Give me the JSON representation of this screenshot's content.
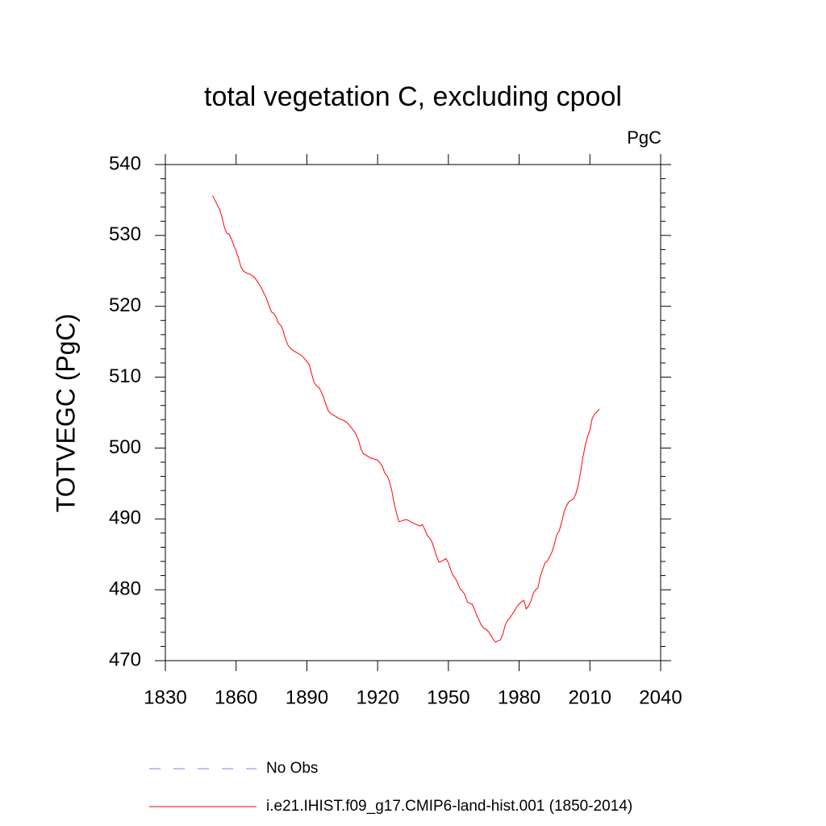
{
  "chart_data": {
    "type": "line",
    "title": "total vegetation C, excluding cpool",
    "units_label": "PgC",
    "y_label": "TOTVEGC  (PgC)",
    "xlim": [
      1830,
      2040
    ],
    "xticks": [
      1830,
      1860,
      1890,
      1920,
      1950,
      1980,
      2010,
      2040
    ],
    "ylim": [
      470,
      540
    ],
    "yticks": [
      470,
      480,
      490,
      500,
      510,
      520,
      530,
      540
    ],
    "yminorticks": [
      472,
      474,
      476,
      478,
      482,
      484,
      486,
      488,
      492,
      494,
      496,
      498,
      502,
      504,
      506,
      508,
      512,
      514,
      516,
      518,
      522,
      524,
      526,
      528,
      532,
      534,
      536,
      538
    ],
    "x": [
      1850,
      1851,
      1852,
      1853,
      1854,
      1855,
      1856,
      1857,
      1858,
      1859,
      1860,
      1861,
      1862,
      1863,
      1864,
      1865,
      1866,
      1867,
      1868,
      1869,
      1870,
      1871,
      1872,
      1873,
      1874,
      1875,
      1876,
      1877,
      1878,
      1879,
      1880,
      1881,
      1882,
      1883,
      1884,
      1885,
      1886,
      1887,
      1888,
      1889,
      1890,
      1891,
      1892,
      1893,
      1894,
      1895,
      1896,
      1897,
      1898,
      1899,
      1900,
      1901,
      1902,
      1903,
      1904,
      1905,
      1906,
      1907,
      1908,
      1909,
      1910,
      1911,
      1912,
      1913,
      1914,
      1915,
      1916,
      1917,
      1918,
      1919,
      1920,
      1921,
      1922,
      1923,
      1924,
      1925,
      1926,
      1927,
      1928,
      1929,
      1930,
      1931,
      1932,
      1933,
      1934,
      1935,
      1936,
      1937,
      1938,
      1939,
      1940,
      1941,
      1942,
      1943,
      1944,
      1945,
      1946,
      1947,
      1948,
      1949,
      1950,
      1951,
      1952,
      1953,
      1954,
      1955,
      1956,
      1957,
      1958,
      1959,
      1960,
      1961,
      1962,
      1963,
      1964,
      1965,
      1966,
      1967,
      1968,
      1969,
      1970,
      1971,
      1972,
      1973,
      1974,
      1975,
      1976,
      1977,
      1978,
      1979,
      1980,
      1981,
      1982,
      1983,
      1984,
      1985,
      1986,
      1987,
      1988,
      1989,
      1990,
      1991,
      1992,
      1993,
      1994,
      1995,
      1996,
      1997,
      1998,
      1999,
      2000,
      2001,
      2002,
      2003,
      2004,
      2005,
      2006,
      2007,
      2008,
      2009,
      2010,
      2011,
      2012,
      2013,
      2014
    ],
    "series": [
      {
        "name": "No Obs",
        "color": "#8080d0",
        "dash": "dashed"
      },
      {
        "name": "i.e21.IHIST.f09_g17.CMIP6-land-hist.001 (1850-2014)",
        "color": "#ff0000",
        "dash": "solid",
        "values": [
          535.6,
          535.0,
          534.3,
          533.7,
          532.6,
          531.2,
          530.3,
          530.2,
          529.5,
          528.6,
          527.8,
          526.8,
          525.6,
          525.0,
          524.8,
          524.6,
          524.5,
          524.3,
          524.0,
          523.5,
          523.0,
          522.4,
          521.7,
          521.0,
          520.0,
          519.2,
          519.0,
          518.4,
          517.6,
          517.3,
          516.5,
          515.3,
          514.5,
          514.1,
          513.8,
          513.6,
          513.4,
          513.2,
          513.0,
          512.6,
          512.2,
          511.8,
          510.5,
          509.3,
          508.8,
          508.6,
          508.0,
          507.2,
          506.2,
          505.3,
          504.9,
          504.7,
          504.5,
          504.3,
          504.1,
          504.0,
          503.8,
          503.6,
          503.2,
          502.8,
          502.4,
          501.8,
          501.0,
          499.8,
          499.2,
          499.0,
          498.8,
          498.6,
          498.5,
          498.4,
          498.3,
          497.9,
          497.4,
          496.5,
          496.1,
          495.3,
          494.0,
          492.2,
          490.8,
          489.6,
          489.7,
          489.8,
          489.9,
          489.8,
          489.6,
          489.4,
          489.3,
          489.1,
          489.0,
          489.2,
          488.5,
          487.7,
          487.3,
          486.8,
          485.8,
          484.7,
          483.9,
          484.0,
          484.2,
          484.4,
          483.8,
          482.8,
          482.0,
          481.6,
          480.9,
          480.1,
          479.8,
          479.3,
          478.3,
          478.1,
          478.0,
          477.3,
          476.4,
          475.7,
          475.0,
          474.6,
          474.4,
          474.1,
          473.6,
          473.0,
          472.6,
          472.8,
          472.9,
          473.6,
          474.9,
          475.6,
          476.0,
          476.5,
          477.0,
          477.6,
          478.0,
          478.3,
          478.5,
          477.3,
          477.7,
          478.4,
          479.5,
          480.0,
          480.3,
          481.9,
          482.9,
          483.8,
          484.1,
          484.7,
          485.4,
          486.5,
          487.8,
          488.3,
          489.5,
          490.9,
          491.8,
          492.4,
          492.6,
          492.8,
          493.5,
          494.7,
          496.5,
          498.6,
          500.3,
          501.6,
          502.5,
          504.2,
          504.8,
          505.1,
          505.5
        ]
      }
    ]
  }
}
